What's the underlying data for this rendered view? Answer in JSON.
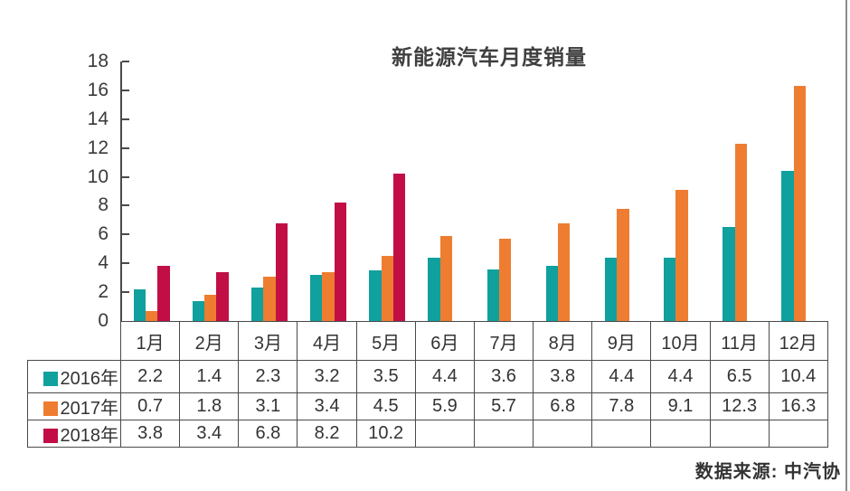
{
  "title": "新能源汽车月度销量",
  "source_note": "数据来源: 中汽协",
  "colors": {
    "series_2016": "#10a09e",
    "series_2017": "#ee7d31",
    "series_2018": "#c10f45",
    "axis": "#4a4a4a",
    "text": "#3a3a3a"
  },
  "chart_data": {
    "type": "bar",
    "title": "新能源汽车月度销量",
    "categories": [
      "1月",
      "2月",
      "3月",
      "4月",
      "5月",
      "6月",
      "7月",
      "8月",
      "9月",
      "10月",
      "11月",
      "12月"
    ],
    "series": [
      {
        "name": "2016年",
        "color": "#10a09e",
        "values": [
          2.2,
          1.4,
          2.3,
          3.2,
          3.5,
          4.4,
          3.6,
          3.8,
          4.4,
          4.4,
          6.5,
          10.4
        ]
      },
      {
        "name": "2017年",
        "color": "#ee7d31",
        "values": [
          0.7,
          1.8,
          3.1,
          3.4,
          4.5,
          5.9,
          5.7,
          6.8,
          7.8,
          9.1,
          12.3,
          16.3
        ]
      },
      {
        "name": "2018年",
        "color": "#c10f45",
        "values": [
          3.8,
          3.4,
          6.8,
          8.2,
          10.2,
          null,
          null,
          null,
          null,
          null,
          null,
          null
        ]
      }
    ],
    "xlabel": "",
    "ylabel": "",
    "ylim": [
      0,
      18
    ],
    "yticks": [
      0,
      2,
      4,
      6,
      8,
      10,
      12,
      14,
      16,
      18
    ],
    "grid": false,
    "legend_position": "data-table-left",
    "data_table_attached": true,
    "source": "数据来源: 中汽协"
  }
}
